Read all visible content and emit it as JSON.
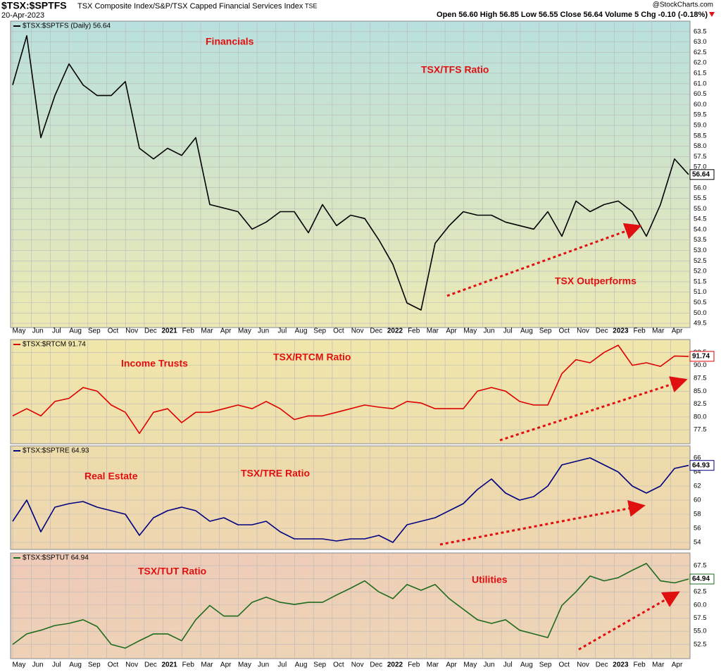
{
  "chart_data": [
    {
      "type": "line",
      "title": "$TSX:$SPTFS",
      "subtitle": "TSX Composite Index/S&P/TSX Capped Financial Services Index",
      "exchange": "TSE",
      "date": "20-Apr-2023",
      "source": "@StockCharts.com",
      "quote": "Open 56.60 High 56.85 Low 56.55 Close 56.64 Volume 5 Chg -0.10 (-0.18%)",
      "series": [
        {
          "name": "$TSX:$SPTFS (Daily) 56.64",
          "color": "#000000",
          "values": [
            60.94,
            63.3,
            58.41,
            60.43,
            61.95,
            60.94,
            60.43,
            60.43,
            61.1,
            57.9,
            57.39,
            57.9,
            57.56,
            58.41,
            55.2,
            55.03,
            54.86,
            54.02,
            54.36,
            54.86,
            54.86,
            53.85,
            55.2,
            54.19,
            54.69,
            54.53,
            53.51,
            52.33,
            50.48,
            50.14,
            53.34,
            54.19,
            54.86,
            54.69,
            54.69,
            54.36,
            54.19,
            54.02,
            54.86,
            53.68,
            55.37,
            54.86,
            55.2,
            55.37,
            54.86,
            53.68,
            55.2,
            57.39,
            56.64
          ]
        }
      ],
      "ylim": [
        49.3,
        64.0
      ],
      "yticks": [
        49.5,
        {
          "value": 50,
          "label": "50.0"
        },
        50.5,
        {
          "value": 51,
          "label": "51.0"
        },
        51.5,
        {
          "value": 52,
          "label": "52.0"
        },
        52.5,
        {
          "value": 53,
          "label": "53.0"
        },
        53.5,
        {
          "value": 54,
          "label": "54.0"
        },
        54.5,
        {
          "value": 55,
          "label": "55.0"
        },
        55.5,
        {
          "value": 56,
          "label": "56.0"
        },
        56.5,
        {
          "value": 57,
          "label": "57.0"
        },
        57.5,
        {
          "value": 58,
          "label": "58.0"
        },
        58.5,
        {
          "value": 59,
          "label": "59.0"
        },
        59.5,
        {
          "value": 60,
          "label": "60.0"
        },
        60.5,
        {
          "value": 61,
          "label": "61.0"
        },
        61.5,
        {
          "value": 62,
          "label": "62.0"
        },
        62.5,
        {
          "value": 63,
          "label": "63.0"
        },
        63.5
      ],
      "annotations": [
        "Financials",
        "TSX/TFS Ratio",
        "TSX Outperforms"
      ],
      "x_labels": [
        "May",
        "Jun",
        "Jul",
        "Aug",
        "Sep",
        "Oct",
        "Nov",
        "Dec",
        "2021",
        "Feb",
        "Mar",
        "Apr",
        "May",
        "Jun",
        "Jul",
        "Aug",
        "Sep",
        "Oct",
        "Nov",
        "Dec",
        "2022",
        "Feb",
        "Mar",
        "Apr",
        "May",
        "Jun",
        "Jul",
        "Aug",
        "Sep",
        "Oct",
        "Nov",
        "Dec",
        "2023",
        "Feb",
        "Mar",
        "Apr"
      ],
      "grid": true
    },
    {
      "type": "line",
      "series": [
        {
          "name": "$TSX:$RTCM 91.74",
          "color": "#dd0000",
          "values": [
            80.2,
            81.6,
            80.2,
            83.0,
            83.6,
            85.7,
            85.0,
            82.3,
            80.9,
            76.8,
            80.9,
            81.6,
            78.9,
            80.9,
            80.9,
            81.6,
            82.3,
            81.6,
            83.0,
            81.6,
            79.5,
            80.2,
            80.2,
            80.9,
            81.6,
            82.3,
            81.9,
            81.6,
            83.0,
            82.7,
            81.6,
            81.6,
            81.6,
            85.0,
            85.7,
            85.0,
            83.0,
            82.3,
            82.3,
            88.4,
            91.1,
            90.5,
            92.5,
            93.9,
            90.0,
            90.5,
            89.8,
            91.8,
            91.74
          ]
        }
      ],
      "ylim": [
        74.8,
        95.0
      ],
      "yticks": [
        77.5,
        {
          "value": 80,
          "label": "80.0"
        },
        82.5,
        {
          "value": 85,
          "label": "85.0"
        },
        87.5,
        {
          "value": 90,
          "label": "90.0"
        },
        92.5
      ],
      "annotations": [
        "Income Trusts",
        "TSX/RTCM Ratio"
      ],
      "grid": true
    },
    {
      "type": "line",
      "series": [
        {
          "name": "$TSX:$SPTRE 64.93",
          "color": "#000080",
          "values": [
            57.0,
            60.0,
            55.5,
            59.0,
            59.5,
            59.8,
            59.0,
            58.5,
            58.0,
            55.0,
            57.5,
            58.5,
            59.0,
            58.5,
            57.0,
            57.5,
            56.5,
            56.5,
            57.0,
            55.5,
            54.5,
            54.5,
            54.5,
            54.2,
            54.5,
            54.5,
            55.0,
            54.0,
            56.5,
            57.0,
            57.5,
            58.5,
            59.5,
            61.5,
            63.0,
            61.0,
            60.0,
            60.5,
            62.0,
            65.0,
            65.5,
            66.0,
            65.0,
            64.0,
            62.0,
            61.0,
            62.0,
            64.5,
            64.93
          ]
        }
      ],
      "ylim": [
        53.0,
        67.7
      ],
      "yticks": [
        54,
        56,
        58,
        60,
        62,
        64,
        66
      ],
      "annotations": [
        "Real Estate",
        "TSX/TRE Ratio"
      ],
      "grid": true
    },
    {
      "type": "line",
      "series": [
        {
          "name": "$TSX:$SPTUT 64.94",
          "color": "#1e6b1e",
          "values": [
            52.5,
            54.5,
            55.2,
            56.1,
            56.5,
            57.2,
            55.9,
            52.5,
            51.8,
            53.2,
            54.5,
            54.5,
            53.2,
            57.2,
            59.9,
            57.9,
            57.9,
            60.5,
            61.5,
            60.5,
            60.1,
            60.5,
            60.5,
            61.9,
            63.2,
            64.6,
            62.5,
            61.2,
            63.9,
            62.8,
            63.9,
            61.2,
            59.2,
            57.2,
            56.5,
            57.2,
            55.2,
            54.5,
            53.8,
            59.9,
            62.5,
            65.5,
            64.6,
            65.2,
            66.6,
            67.9,
            64.6,
            64.2,
            64.94
          ]
        }
      ],
      "ylim": [
        49.8,
        69.9
      ],
      "yticks": [
        {
          "value": 52.5,
          "label": "52.5"
        },
        {
          "value": 55,
          "label": "55.0"
        },
        57.5,
        {
          "value": 60,
          "label": "60.0"
        },
        62.5,
        {
          "value": 65,
          "label": "65.0"
        },
        67.5
      ],
      "annotations": [
        "TSX/TUT Ratio",
        "Utilities"
      ],
      "x_labels": [
        "May",
        "Jun",
        "Jul",
        "Aug",
        "Sep",
        "Oct",
        "Nov",
        "Dec",
        "2021",
        "Feb",
        "Mar",
        "Apr",
        "May",
        "Jun",
        "Jul",
        "Aug",
        "Sep",
        "Oct",
        "Nov",
        "Dec",
        "2022",
        "Feb",
        "Mar",
        "Apr",
        "May",
        "Jun",
        "Jul",
        "Aug",
        "Sep",
        "Oct",
        "Nov",
        "Dec",
        "2023",
        "Feb",
        "Mar",
        "Apr"
      ],
      "grid": true
    }
  ]
}
